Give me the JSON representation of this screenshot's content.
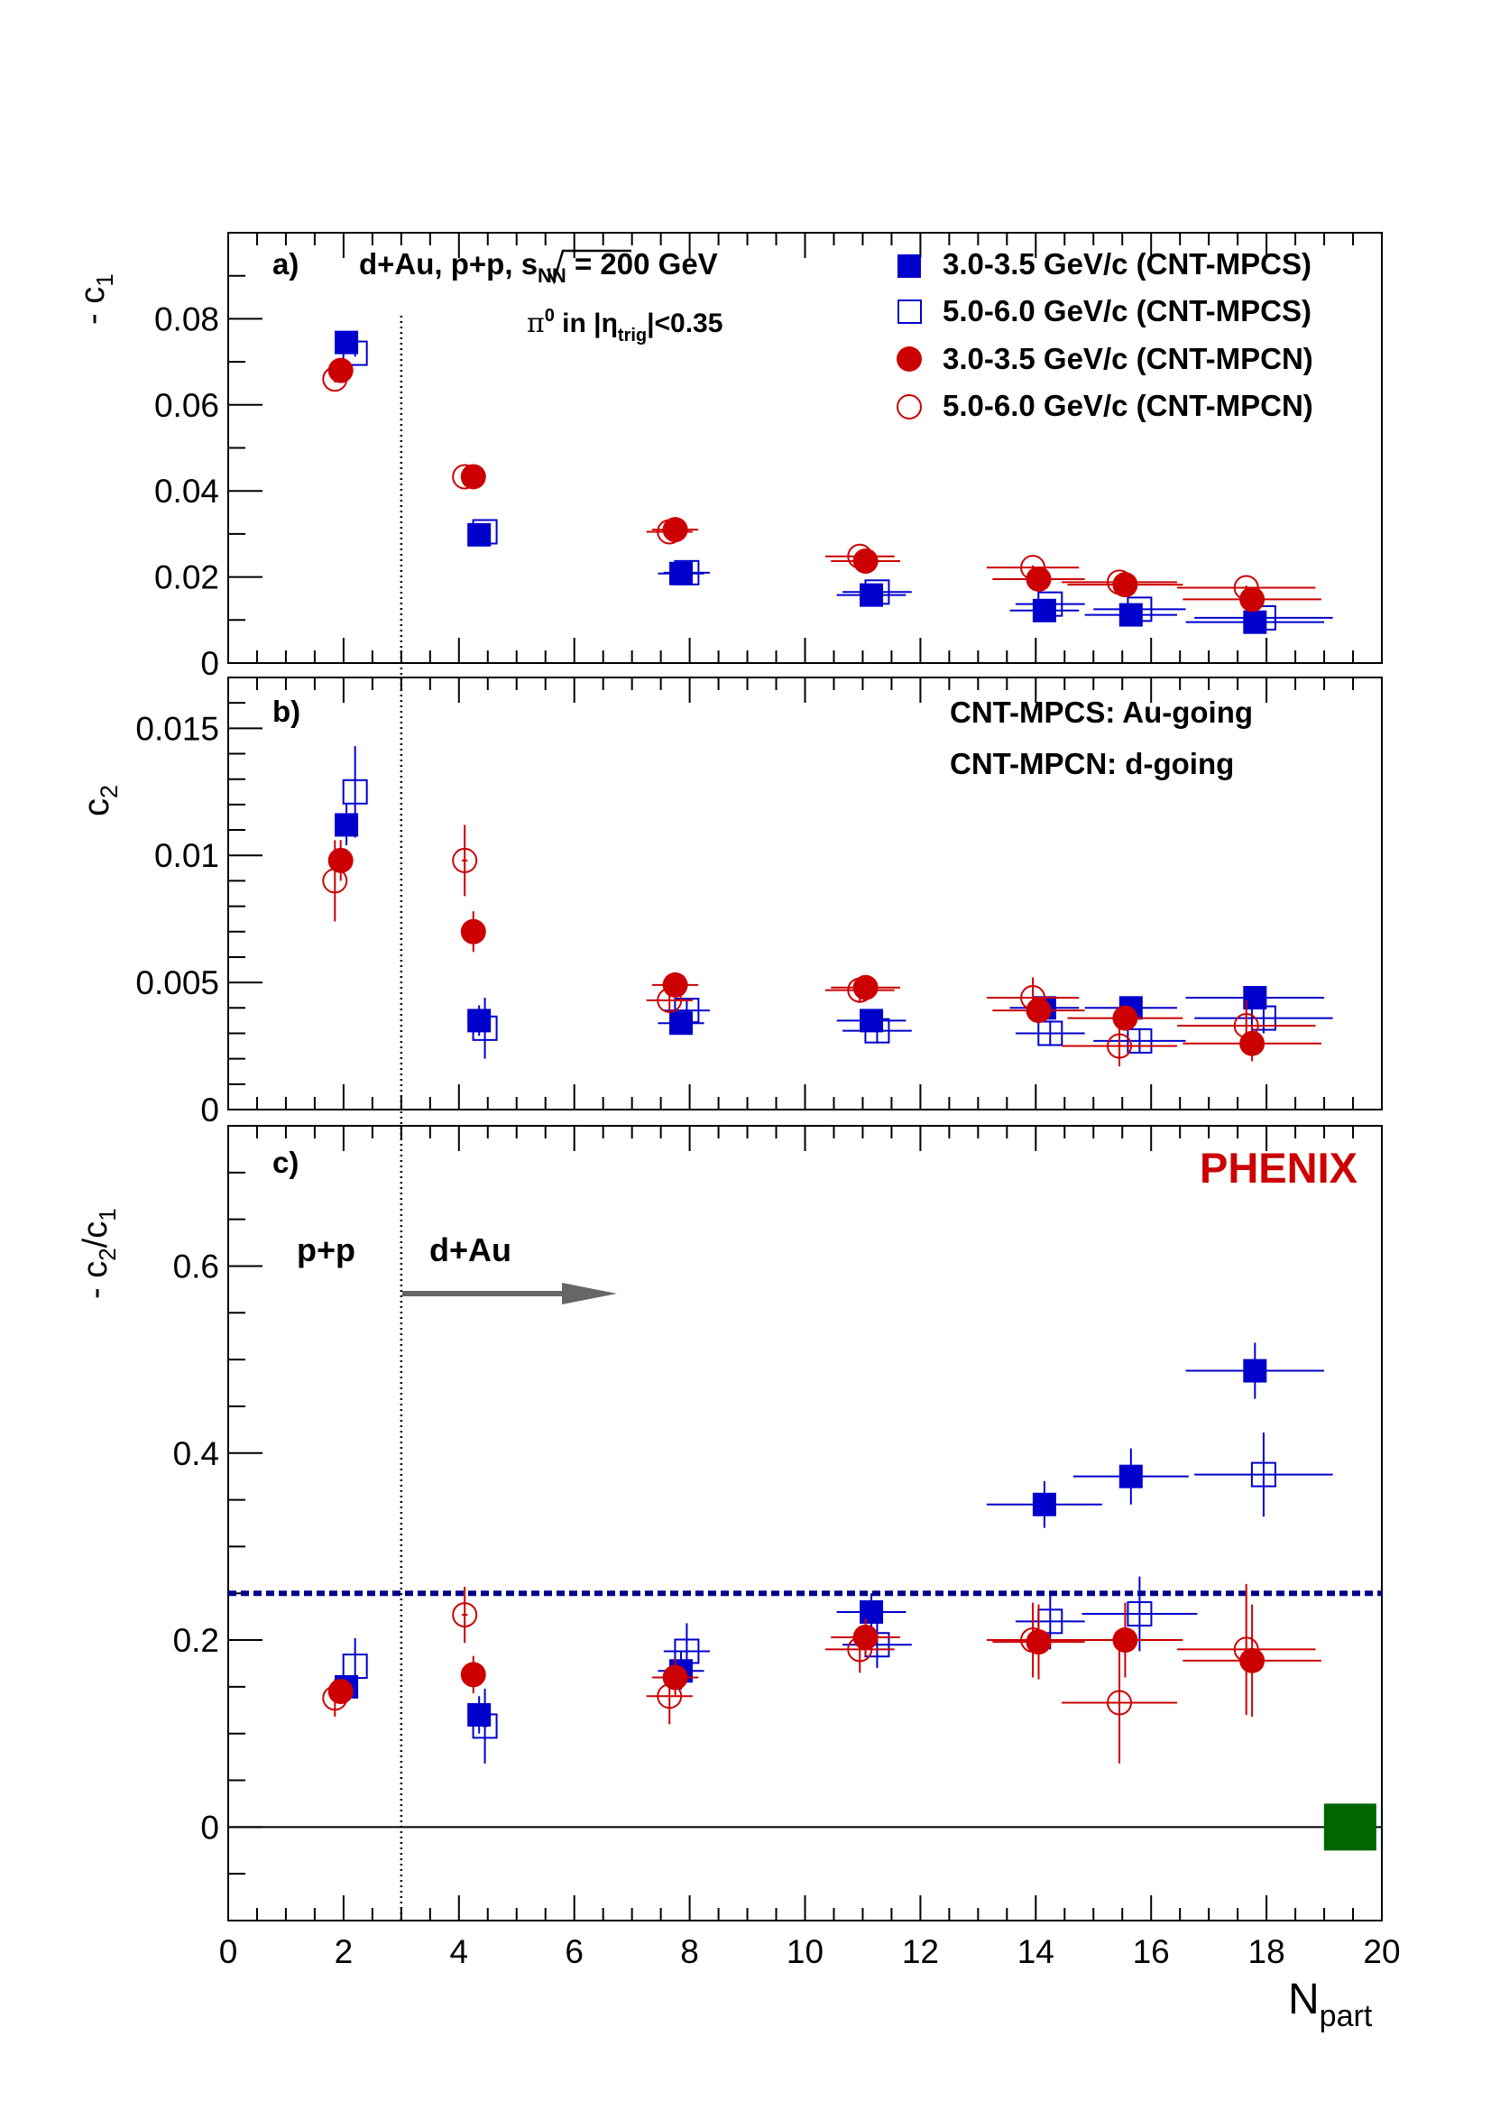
{
  "figure": {
    "x_label_main": "N",
    "x_label_sub": "part",
    "x_ticks": [
      "0",
      "2",
      "4",
      "6",
      "8",
      "10",
      "12",
      "14",
      "16",
      "18",
      "20"
    ],
    "colors": {
      "blue": "#0000cc",
      "red": "#cc0000",
      "green": "#006600",
      "arrow": "#666666"
    }
  },
  "legend": [
    {
      "label": "3.0-3.5 GeV/c (CNT-MPCS)",
      "color": "#0000cc",
      "marker": "square-filled"
    },
    {
      "label": "5.0-6.0 GeV/c (CNT-MPCS)",
      "color": "#0000cc",
      "marker": "square-open"
    },
    {
      "label": "3.0-3.5 GeV/c (CNT-MPCN)",
      "color": "#cc0000",
      "marker": "circle-filled"
    },
    {
      "label": "5.0-6.0 GeV/c (CNT-MPCN)",
      "color": "#cc0000",
      "marker": "circle-open"
    }
  ],
  "panel_a": {
    "tag": "a)",
    "title_pre": "d+Au, p+p, ",
    "title_sqrt": "s",
    "title_sub": "NN",
    "title_post": " = 200 GeV",
    "trigger_pi": "π",
    "trigger_sup": "0",
    "trigger_in": " in |η",
    "trigger_sub": "trig",
    "trigger_post": "|<0.35",
    "ylabel_pre": "- c",
    "ylabel_sub": "1",
    "yticks": [
      "0",
      "0.02",
      "0.04",
      "0.06",
      "0.08"
    ]
  },
  "panel_b": {
    "tag": "b)",
    "note1": "CNT-MPCS: Au-going",
    "note2": "CNT-MPCN: d-going",
    "ylabel_pre": "c",
    "ylabel_sub": "2",
    "yticks": [
      "0",
      "0.005",
      "0.01",
      "0.015"
    ]
  },
  "panel_c": {
    "tag": "c)",
    "experiment": "PHENIX",
    "pp_label": "p+p",
    "dau_label": "d+Au",
    "ylabel_pre": "- c",
    "ylabel_sub1": "2",
    "ylabel_mid": "/c",
    "ylabel_sub2": "1",
    "yticks": [
      "0",
      "0.2",
      "0.4",
      "0.6"
    ]
  },
  "chart_data": [
    {
      "type": "scatter",
      "panel": "a",
      "ylabel": "- c1",
      "xlim": [
        0,
        20
      ],
      "ylim": [
        0,
        0.1
      ],
      "series": [
        {
          "name": "3.0-3.5 GeV/c (CNT-MPCS)",
          "marker": "square-filled",
          "color": "#0000cc",
          "x": [
            2.05,
            4.35,
            7.85,
            11.15,
            14.15,
            15.65,
            17.8
          ],
          "y": [
            0.0745,
            0.0298,
            0.0208,
            0.0158,
            0.0122,
            0.0112,
            0.0095
          ],
          "xerr": [
            0,
            0.05,
            0.4,
            0.6,
            0.6,
            0.8,
            1.2
          ],
          "yerr": [
            0.0008,
            0.0008,
            0.0006,
            0.0005,
            0.0005,
            0.0005,
            0.0005
          ]
        },
        {
          "name": "5.0-6.0 GeV/c (CNT-MPCS)",
          "marker": "square-open",
          "color": "#0000cc",
          "x": [
            2.2,
            4.45,
            7.95,
            11.25,
            14.25,
            15.8,
            17.95
          ],
          "y": [
            0.072,
            0.0305,
            0.021,
            0.0165,
            0.0137,
            0.0125,
            0.0105
          ],
          "xerr": [
            0,
            0.05,
            0.4,
            0.6,
            0.6,
            0.8,
            1.2
          ],
          "yerr": [
            0.0008,
            0.0008,
            0.0006,
            0.0005,
            0.0005,
            0.0005,
            0.0005
          ]
        },
        {
          "name": "3.0-3.5 GeV/c (CNT-MPCN)",
          "marker": "circle-filled",
          "color": "#cc0000",
          "x": [
            1.95,
            4.25,
            7.75,
            11.05,
            14.05,
            15.55,
            17.75
          ],
          "y": [
            0.068,
            0.0433,
            0.031,
            0.0237,
            0.0195,
            0.0182,
            0.0148
          ],
          "xerr": [
            0,
            0.05,
            0.4,
            0.6,
            0.8,
            1.0,
            1.2
          ],
          "yerr": [
            0.0008,
            0.0008,
            0.0006,
            0.0005,
            0.0005,
            0.0005,
            0.0005
          ]
        },
        {
          "name": "5.0-6.0 GeV/c (CNT-MPCN)",
          "marker": "circle-open",
          "color": "#cc0000",
          "x": [
            1.85,
            4.1,
            7.65,
            10.95,
            13.95,
            15.45,
            17.65
          ],
          "y": [
            0.066,
            0.0433,
            0.0305,
            0.0248,
            0.0222,
            0.0188,
            0.0175
          ],
          "xerr": [
            0,
            0.05,
            0.4,
            0.6,
            0.8,
            1.0,
            1.2
          ],
          "yerr": [
            0.0008,
            0.0008,
            0.0006,
            0.0005,
            0.0005,
            0.0005,
            0.0005
          ]
        }
      ]
    },
    {
      "type": "scatter",
      "panel": "b",
      "ylabel": "c2",
      "xlim": [
        0,
        20
      ],
      "ylim": [
        0,
        0.017
      ],
      "series": [
        {
          "name": "3.0-3.5 GeV/c (CNT-MPCS)",
          "marker": "square-filled",
          "color": "#0000cc",
          "x": [
            2.05,
            4.35,
            7.85,
            11.15,
            14.15,
            15.65,
            17.8
          ],
          "y": [
            0.0112,
            0.0035,
            0.0034,
            0.0035,
            0.004,
            0.004,
            0.0044
          ],
          "xerr": [
            0,
            0.05,
            0.4,
            0.6,
            0.6,
            0.8,
            1.2
          ],
          "yerr": [
            0.0008,
            0.0006,
            0.0004,
            0.0004,
            0.0004,
            0.0004,
            0.0004
          ]
        },
        {
          "name": "5.0-6.0 GeV/c (CNT-MPCS)",
          "marker": "square-open",
          "color": "#0000cc",
          "x": [
            2.2,
            4.45,
            7.95,
            11.25,
            14.25,
            15.8,
            17.95
          ],
          "y": [
            0.0125,
            0.0032,
            0.0039,
            0.0031,
            0.003,
            0.0027,
            0.0036
          ],
          "xerr": [
            0,
            0.05,
            0.4,
            0.6,
            0.6,
            0.8,
            1.2
          ],
          "yerr": [
            0.0018,
            0.0012,
            0.0005,
            0.0005,
            0.0005,
            0.0005,
            0.0006
          ]
        },
        {
          "name": "3.0-3.5 GeV/c (CNT-MPCN)",
          "marker": "circle-filled",
          "color": "#cc0000",
          "x": [
            1.95,
            4.25,
            7.75,
            11.05,
            14.05,
            15.55,
            17.75
          ],
          "y": [
            0.0098,
            0.007,
            0.0049,
            0.0048,
            0.0039,
            0.0036,
            0.0026
          ],
          "xerr": [
            0,
            0.05,
            0.4,
            0.6,
            0.8,
            1.0,
            1.2
          ],
          "yerr": [
            0.0008,
            0.0008,
            0.0005,
            0.0004,
            0.0004,
            0.0004,
            0.0007
          ]
        },
        {
          "name": "5.0-6.0 GeV/c (CNT-MPCN)",
          "marker": "circle-open",
          "color": "#cc0000",
          "x": [
            1.85,
            4.1,
            7.65,
            10.95,
            13.95,
            15.45,
            17.65
          ],
          "y": [
            0.009,
            0.0098,
            0.0043,
            0.0047,
            0.0044,
            0.0025,
            0.0033
          ],
          "xerr": [
            0,
            0.05,
            0.4,
            0.6,
            0.8,
            1.0,
            1.2
          ],
          "yerr": [
            0.0016,
            0.0014,
            0.0005,
            0.0005,
            0.0008,
            0.0008,
            0.001
          ]
        }
      ]
    },
    {
      "type": "scatter",
      "panel": "c",
      "ylabel": "- c2/c1",
      "xlabel": "Npart",
      "xlim": [
        0,
        20
      ],
      "ylim": [
        -0.1,
        0.75
      ],
      "reference_line_y": 0.25,
      "zero_line_y": 0,
      "marker_at_edge": {
        "x": 19.45,
        "y": 0,
        "color": "#006600",
        "shape": "square-filled"
      },
      "vertical_line_x": 3,
      "series": [
        {
          "name": "3.0-3.5 GeV/c (CNT-MPCS)",
          "marker": "square-filled",
          "color": "#0000cc",
          "x": [
            2.05,
            4.35,
            7.85,
            11.15,
            14.15,
            15.65,
            17.8
          ],
          "y": [
            0.15,
            0.12,
            0.167,
            0.23,
            0.345,
            0.375,
            0.488
          ],
          "xerr": [
            0,
            0.05,
            0.4,
            0.6,
            1.0,
            1.0,
            1.2
          ],
          "yerr": [
            0.012,
            0.02,
            0.02,
            0.02,
            0.025,
            0.03,
            0.03
          ]
        },
        {
          "name": "5.0-6.0 GeV/c (CNT-MPCS)",
          "marker": "square-open",
          "color": "#0000cc",
          "x": [
            2.2,
            4.45,
            7.95,
            11.25,
            14.25,
            15.8,
            17.95
          ],
          "y": [
            0.172,
            0.108,
            0.188,
            0.195,
            0.22,
            0.228,
            0.377
          ],
          "xerr": [
            0,
            0.05,
            0.4,
            0.6,
            0.6,
            1.0,
            1.2
          ],
          "yerr": [
            0.03,
            0.04,
            0.03,
            0.025,
            0.03,
            0.04,
            0.045
          ]
        },
        {
          "name": "3.0-3.5 GeV/c (CNT-MPCN)",
          "marker": "circle-filled",
          "color": "#cc0000",
          "x": [
            1.95,
            4.25,
            7.75,
            11.05,
            14.05,
            15.55,
            17.75
          ],
          "y": [
            0.145,
            0.163,
            0.16,
            0.203,
            0.198,
            0.2,
            0.178
          ],
          "xerr": [
            0,
            0.05,
            0.4,
            0.6,
            0.8,
            1.0,
            1.2
          ],
          "yerr": [
            0.012,
            0.02,
            0.02,
            0.02,
            0.04,
            0.04,
            0.06
          ]
        },
        {
          "name": "5.0-6.0 GeV/c (CNT-MPCN)",
          "marker": "circle-open",
          "color": "#cc0000",
          "x": [
            1.85,
            4.1,
            7.65,
            10.95,
            13.95,
            15.45,
            17.65
          ],
          "y": [
            0.138,
            0.227,
            0.14,
            0.19,
            0.2,
            0.133,
            0.19
          ],
          "xerr": [
            0,
            0.05,
            0.4,
            0.6,
            0.8,
            1.0,
            1.2
          ],
          "yerr": [
            0.02,
            0.03,
            0.03,
            0.025,
            0.04,
            0.065,
            0.07
          ]
        }
      ]
    }
  ]
}
